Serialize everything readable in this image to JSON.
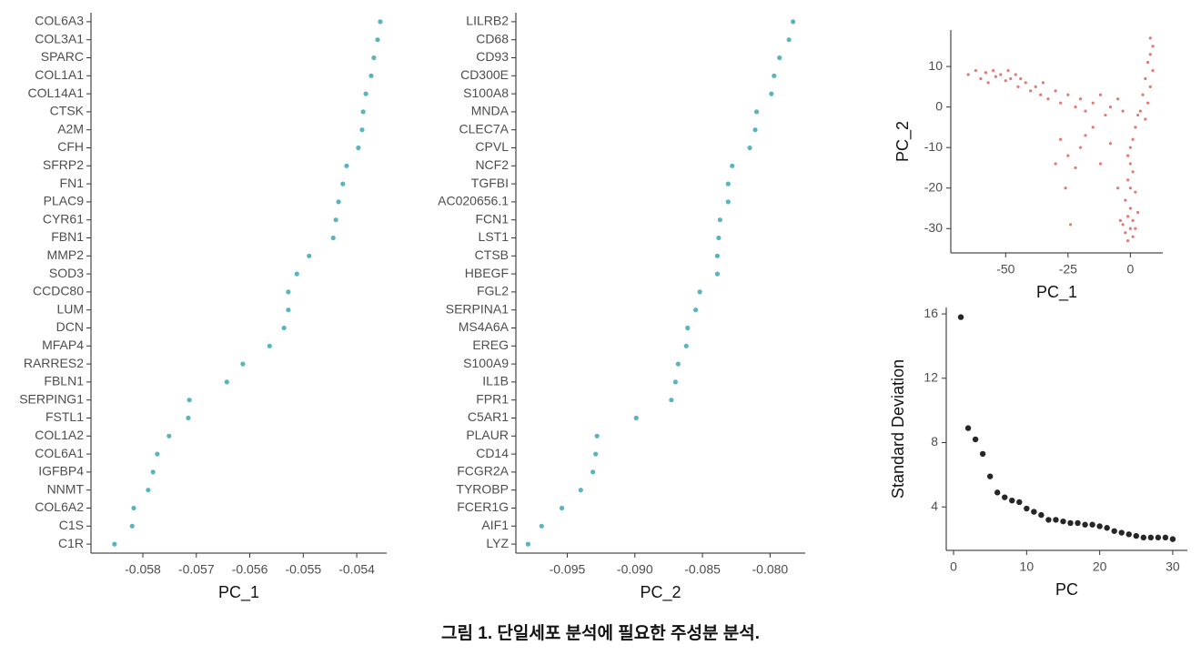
{
  "chart_data": [
    {
      "type": "dot",
      "xlabel": "PC_1",
      "color": "#5ab4bd",
      "categories": [
        "COL6A3",
        "COL3A1",
        "SPARC",
        "COL1A1",
        "COL14A1",
        "CTSK",
        "A2M",
        "CFH",
        "SFRP2",
        "FN1",
        "PLAC9",
        "CYR61",
        "FBN1",
        "MMP2",
        "SOD3",
        "CCDC80",
        "LUM",
        "DCN",
        "MFAP4",
        "RARRES2",
        "FBLN1",
        "SERPING1",
        "FSTL1",
        "COL1A2",
        "COL6A1",
        "IGFBP4",
        "NNMT",
        "COL6A2",
        "C1S",
        "C1R"
      ],
      "values": [
        -0.05356,
        -0.05361,
        -0.05368,
        -0.05373,
        -0.05383,
        -0.05388,
        -0.0539,
        -0.05397,
        -0.05419,
        -0.05426,
        -0.05434,
        -0.05439,
        -0.05444,
        -0.05489,
        -0.05512,
        -0.05528,
        -0.05528,
        -0.05536,
        -0.05563,
        -0.05613,
        -0.05643,
        -0.05713,
        -0.05715,
        -0.05751,
        -0.05773,
        -0.05781,
        -0.0579,
        -0.05817,
        -0.0582,
        -0.05853
      ],
      "xlim": [
        -0.05897,
        -0.05344
      ],
      "xticks": [
        -0.058,
        -0.057,
        -0.056,
        -0.055,
        -0.054
      ]
    },
    {
      "type": "dot",
      "xlabel": "PC_2",
      "color": "#5ab4bd",
      "categories": [
        "LILRB2",
        "CD68",
        "CD93",
        "CD300E",
        "S100A8",
        "MNDA",
        "CLEC7A",
        "CPVL",
        "NCF2",
        "TGFBI",
        "AC020656.1",
        "FCN1",
        "LST1",
        "CTSB",
        "HBEGF",
        "FGL2",
        "SERPINA1",
        "MS4A6A",
        "EREG",
        "S100A9",
        "IL1B",
        "FPR1",
        "C5AR1",
        "PLAUR",
        "CD14",
        "FCGR2A",
        "TYROBP",
        "FCER1G",
        "AIF1",
        "LYZ"
      ],
      "values": [
        -0.0783,
        -0.0786,
        -0.0793,
        -0.0797,
        -0.0799,
        -0.081,
        -0.0811,
        -0.0815,
        -0.0828,
        -0.0831,
        -0.0831,
        -0.0837,
        -0.0838,
        -0.0839,
        -0.0839,
        -0.0852,
        -0.0855,
        -0.0861,
        -0.0862,
        -0.0868,
        -0.087,
        -0.0873,
        -0.0899,
        -0.0928,
        -0.0929,
        -0.0931,
        -0.094,
        -0.0954,
        -0.0969,
        -0.0979
      ],
      "xlim": [
        -0.0988,
        -0.0774
      ],
      "xticks": [
        -0.095,
        {
          "value": -0.09,
          "label": "-0.090"
        },
        -0.085,
        {
          "value": -0.08,
          "label": "-0.080"
        }
      ]
    },
    {
      "type": "scatter",
      "xlabel": "PC_1",
      "ylabel": "PC_2",
      "color": "#e0605a",
      "size": 1.6,
      "x": [
        -65,
        -62,
        -60,
        -58,
        -57,
        -55,
        -54,
        -52,
        -50,
        -49,
        -48,
        -46,
        -45,
        -44,
        -42,
        -40,
        -38,
        -36,
        -35,
        -33,
        -30,
        -28,
        -25,
        -22,
        -20,
        -18,
        -15,
        -12,
        -10,
        -8,
        -5,
        -3,
        -28,
        -25,
        -22,
        -20,
        -18,
        -15,
        -26,
        -24,
        -30,
        -12,
        -8,
        -5,
        8,
        9,
        8,
        7,
        9,
        6,
        8,
        5,
        7,
        4,
        6,
        3,
        2,
        1,
        0,
        -1,
        0,
        1,
        -1,
        0,
        2,
        -2,
        0,
        -1,
        1,
        -3,
        0,
        -2,
        1,
        -1,
        2,
        -4,
        3
      ],
      "values": [
        8,
        9,
        7,
        8.5,
        6,
        9,
        7.5,
        8,
        6.5,
        9,
        7,
        8,
        5,
        7,
        6,
        4,
        5,
        3,
        6,
        2,
        4,
        1,
        3,
        0,
        2,
        -1,
        1,
        3,
        -2,
        0,
        2,
        -1,
        -8,
        -12,
        -15,
        -10,
        -7,
        -5,
        -20,
        -29,
        -14,
        -14,
        -9,
        -20,
        17,
        15,
        13,
        11,
        9,
        7,
        5,
        3,
        1,
        -1,
        -3,
        -2,
        -5,
        -8,
        -10,
        -12,
        -14,
        -16,
        -18,
        -20,
        -21,
        -23,
        -25,
        -27,
        -28,
        -29,
        -30,
        -31,
        -32,
        -33,
        -30,
        -28,
        -26
      ],
      "xlim": [
        -72,
        13
      ],
      "ylim": [
        -36,
        19
      ],
      "xticks": [
        -50,
        -25,
        0
      ],
      "yticks": [
        10,
        0,
        -10,
        -20,
        -30
      ]
    },
    {
      "type": "scatter",
      "xlabel": "PC",
      "ylabel": "Standard Deviation",
      "color": "#000000",
      "size": 3.2,
      "x": [
        1,
        2,
        3,
        4,
        5,
        6,
        7,
        8,
        9,
        10,
        11,
        12,
        13,
        14,
        15,
        16,
        17,
        18,
        19,
        20,
        21,
        22,
        23,
        24,
        25,
        26,
        27,
        28,
        29,
        30
      ],
      "values": [
        15.8,
        8.9,
        8.2,
        7.3,
        5.9,
        4.9,
        4.6,
        4.4,
        4.3,
        3.9,
        3.7,
        3.5,
        3.2,
        3.2,
        3.1,
        3.0,
        3.0,
        2.9,
        2.9,
        2.8,
        2.7,
        2.5,
        2.4,
        2.3,
        2.2,
        2.1,
        2.1,
        2.1,
        2.1,
        2.0
      ],
      "xlim": [
        -1,
        32
      ],
      "ylim": [
        1.3,
        16.4
      ],
      "xticks": [
        0,
        10,
        20,
        30
      ],
      "yticks": [
        4,
        8,
        12,
        16
      ]
    }
  ],
  "caption": "그림 1. 단일세포 분석에 필요한 주성분 분석."
}
